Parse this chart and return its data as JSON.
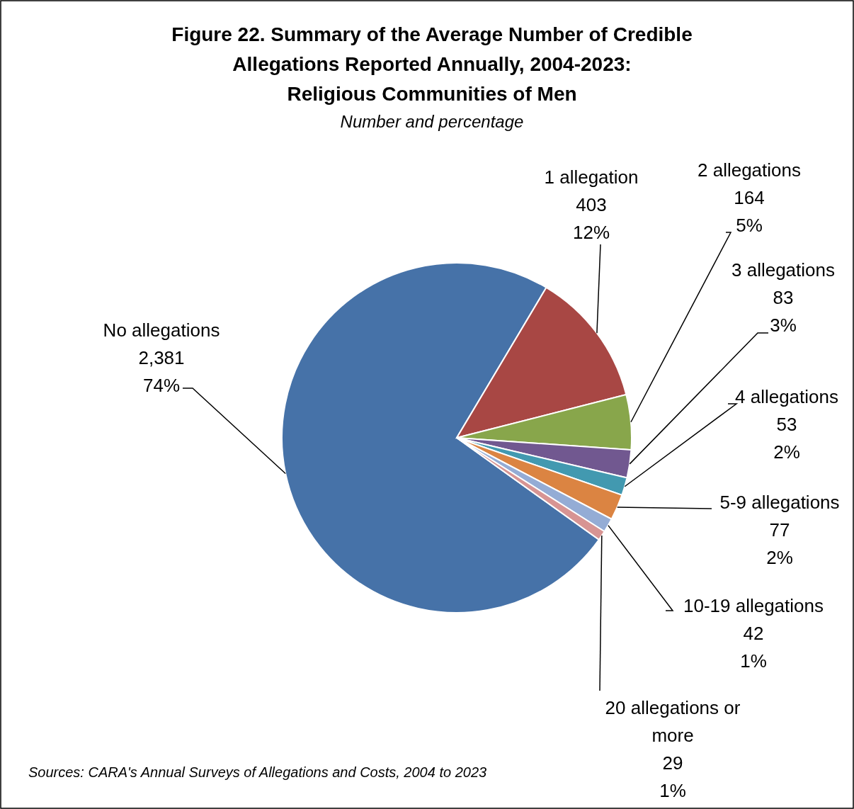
{
  "chart_data": {
    "type": "pie",
    "title": "Figure 22. Summary of the Average Number of Credible Allegations Reported Annually, 2004-2023: Religious Communities of Men",
    "subtitle": "Number and percentage",
    "categories": [
      "No allegations",
      "1 allegation",
      "2 allegations",
      "3 allegations",
      "4 allegations",
      "5-9 allegations",
      "10-19 allegations",
      "20 allegations or more"
    ],
    "values": [
      2381,
      403,
      164,
      83,
      53,
      77,
      42,
      29
    ],
    "colors": [
      "#4672a8",
      "#a84744",
      "#88a64b",
      "#715890",
      "#4299b0",
      "#db8442",
      "#94acd5",
      "#d79493"
    ],
    "value_labels": [
      "2,381\n74%",
      "403\n12%",
      "164\n5%",
      "83\n3%",
      "53\n2%",
      "77\n2%",
      "42\n1%",
      "29\n1%"
    ],
    "annotations": [
      "Sources: CARA's Annual Surveys of Allegations and Costs, 2004 to 2023"
    ]
  }
}
